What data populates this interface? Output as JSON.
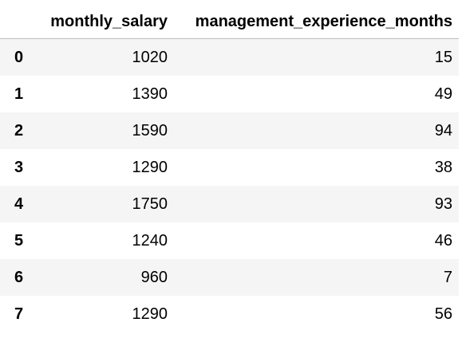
{
  "table": {
    "columns": [
      "monthly_salary",
      "management_experience_months"
    ],
    "rows": [
      {
        "index": "0",
        "monthly_salary": "1020",
        "management_experience_months": "15"
      },
      {
        "index": "1",
        "monthly_salary": "1390",
        "management_experience_months": "49"
      },
      {
        "index": "2",
        "monthly_salary": "1590",
        "management_experience_months": "94"
      },
      {
        "index": "3",
        "monthly_salary": "1290",
        "management_experience_months": "38"
      },
      {
        "index": "4",
        "monthly_salary": "1750",
        "management_experience_months": "93"
      },
      {
        "index": "5",
        "monthly_salary": "1240",
        "management_experience_months": "46"
      },
      {
        "index": "6",
        "monthly_salary": "960",
        "management_experience_months": "7"
      },
      {
        "index": "7",
        "monthly_salary": "1290",
        "management_experience_months": "56"
      }
    ]
  },
  "colors": {
    "stripe": "#f5f5f5",
    "header_rule": "#bdbdbd"
  }
}
